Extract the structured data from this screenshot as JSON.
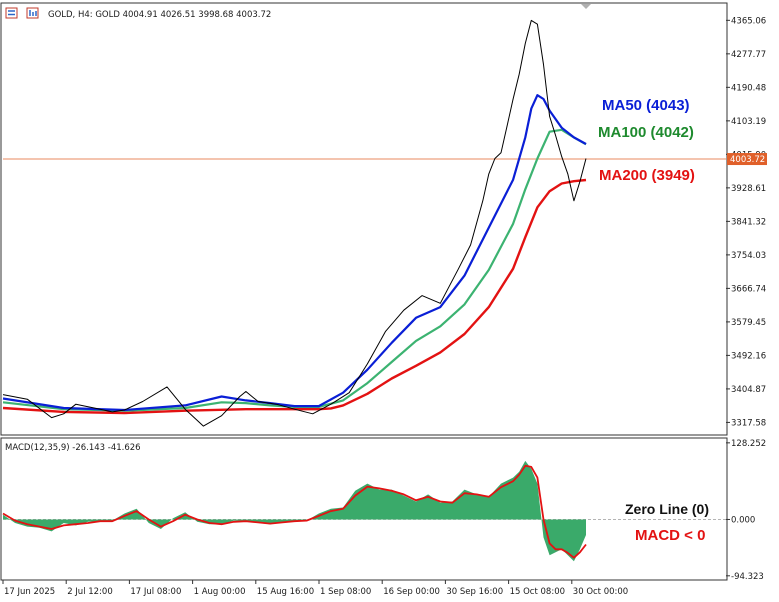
{
  "header": {
    "symbol_line": "GOLD, H4:  GOLD  4004.91 4026.51 3998.68 4003.72"
  },
  "colors": {
    "price": "#000000",
    "ma50": "#0a1fd6",
    "ma100": "#3cb371",
    "ma200": "#e31212",
    "macd_hist": "#3aaa6a",
    "macd_signal": "#e31212",
    "price_line": "#e0602a"
  },
  "chart_data": [
    {
      "type": "line",
      "title": "GOLD, H4",
      "y_ticks": [
        "4365.06",
        "4277.77",
        "4190.48",
        "4103.19",
        "4015.90",
        "3928.61",
        "3841.32",
        "3754.03",
        "3666.74",
        "3579.45",
        "3492.16",
        "3404.87",
        "3317.58"
      ],
      "ylim": [
        3290,
        4405
      ],
      "x_labels": [
        "17 Jun 2025",
        "2 Jul 12:00",
        "17 Jul 08:00",
        "1 Aug 00:00",
        "15 Aug 16:00",
        "1 Sep 08:00",
        "16 Sep 00:00",
        "30 Sep 16:00",
        "15 Oct 08:00",
        "30 Oct 00:00"
      ],
      "current_price": "4003.72",
      "series": [
        {
          "name": "price",
          "x": [
            0,
            4,
            8,
            10,
            12,
            15,
            18,
            20,
            23,
            27,
            30,
            33,
            36,
            39,
            40,
            42,
            45,
            48,
            51,
            54,
            57,
            60,
            63,
            66,
            69,
            72,
            75,
            77,
            79,
            80,
            81,
            82,
            83,
            84,
            85,
            86,
            87,
            88,
            89,
            90,
            91,
            92,
            93,
            94,
            95,
            96
          ],
          "values": [
            3390,
            3378,
            3330,
            3340,
            3365,
            3355,
            3345,
            3350,
            3372,
            3410,
            3352,
            3308,
            3335,
            3385,
            3398,
            3372,
            3365,
            3352,
            3340,
            3365,
            3395,
            3470,
            3555,
            3610,
            3648,
            3628,
            3718,
            3780,
            3895,
            3965,
            4005,
            4020,
            4090,
            4160,
            4225,
            4305,
            4365,
            4355,
            4250,
            4115,
            4065,
            4010,
            3965,
            3895,
            3945,
            4005
          ]
        },
        {
          "name": "MA50",
          "x": [
            0,
            10,
            20,
            30,
            36,
            40,
            44,
            48,
            52,
            56,
            60,
            64,
            68,
            72,
            76,
            80,
            84,
            86,
            87,
            88,
            89,
            90,
            92,
            94,
            96
          ],
          "values": [
            3380,
            3355,
            3350,
            3362,
            3385,
            3375,
            3368,
            3360,
            3360,
            3395,
            3455,
            3525,
            3590,
            3618,
            3700,
            3825,
            3950,
            4060,
            4135,
            4170,
            4160,
            4130,
            4085,
            4060,
            4043
          ]
        },
        {
          "name": "MA100",
          "x": [
            0,
            10,
            20,
            30,
            36,
            40,
            44,
            48,
            52,
            56,
            60,
            64,
            68,
            72,
            76,
            80,
            84,
            86,
            88,
            90,
            92,
            94,
            96
          ],
          "values": [
            3370,
            3352,
            3348,
            3355,
            3370,
            3368,
            3362,
            3358,
            3358,
            3375,
            3420,
            3475,
            3530,
            3568,
            3625,
            3715,
            3835,
            3925,
            4005,
            4075,
            4080,
            4060,
            4042
          ]
        },
        {
          "name": "MA200",
          "x": [
            0,
            10,
            20,
            30,
            40,
            50,
            52,
            54,
            56,
            60,
            64,
            68,
            72,
            76,
            80,
            84,
            86,
            88,
            90,
            92,
            94,
            96
          ],
          "values": [
            3355,
            3345,
            3342,
            3348,
            3352,
            3352,
            3352,
            3354,
            3362,
            3392,
            3432,
            3465,
            3500,
            3548,
            3618,
            3718,
            3800,
            3878,
            3920,
            3940,
            3946,
            3949
          ]
        }
      ],
      "annotations": [
        {
          "label": "MA50 (4043)"
        },
        {
          "label": "MA100 (4042)"
        },
        {
          "label": "MA200 (3949)"
        }
      ]
    },
    {
      "type": "area",
      "title": "MACD(12,35,9) -26.143 -41.626",
      "y_ticks": [
        "128.252",
        "0.000",
        "-94.323"
      ],
      "ylim": [
        -98,
        133
      ],
      "series": [
        {
          "name": "MACD",
          "x": [
            0,
            2,
            4,
            6,
            8,
            10,
            12,
            14,
            16,
            18,
            20,
            22,
            24,
            26,
            28,
            30,
            32,
            34,
            36,
            38,
            40,
            42,
            44,
            46,
            48,
            50,
            52,
            54,
            56,
            58,
            60,
            62,
            64,
            66,
            68,
            70,
            72,
            74,
            76,
            78,
            80,
            82,
            84,
            85,
            86,
            87,
            88,
            89,
            90,
            91,
            92,
            93,
            94,
            95,
            96
          ],
          "values": [
            8,
            -6,
            -12,
            -14,
            -20,
            -6,
            -10,
            -4,
            -3,
            -2,
            10,
            18,
            -6,
            -16,
            2,
            12,
            -4,
            -8,
            -8,
            -2,
            -3,
            -6,
            -8,
            -4,
            -3,
            -2,
            10,
            18,
            20,
            48,
            60,
            50,
            50,
            40,
            30,
            42,
            28,
            30,
            50,
            42,
            38,
            60,
            70,
            80,
            98,
            85,
            60,
            -30,
            -60,
            -55,
            -50,
            -60,
            -70,
            -50,
            -26
          ]
        },
        {
          "name": "Signal",
          "x": [
            0,
            2,
            4,
            6,
            8,
            10,
            12,
            14,
            16,
            18,
            20,
            22,
            24,
            26,
            28,
            30,
            32,
            34,
            36,
            38,
            40,
            42,
            44,
            46,
            48,
            50,
            52,
            54,
            56,
            58,
            60,
            62,
            64,
            66,
            68,
            70,
            72,
            74,
            76,
            78,
            80,
            82,
            84,
            85,
            86,
            87,
            88,
            89,
            90,
            91,
            92,
            93,
            94,
            95,
            96
          ],
          "values": [
            10,
            -2,
            -8,
            -12,
            -16,
            -10,
            -8,
            -6,
            -3,
            -3,
            6,
            14,
            0,
            -12,
            -3,
            8,
            0,
            -6,
            -8,
            -4,
            -3,
            -5,
            -7,
            -5,
            -3,
            -2,
            6,
            14,
            18,
            40,
            55,
            52,
            48,
            42,
            32,
            38,
            30,
            28,
            44,
            42,
            38,
            54,
            64,
            75,
            90,
            88,
            70,
            0,
            -40,
            -50,
            -50,
            -56,
            -64,
            -55,
            -42
          ]
        }
      ],
      "annotations": [
        {
          "label": "Zero Line (0)"
        },
        {
          "label": "MACD < 0"
        }
      ]
    }
  ]
}
